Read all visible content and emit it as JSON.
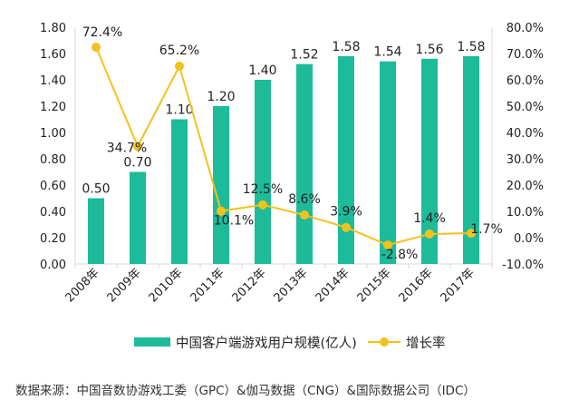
{
  "chart_data": {
    "type": "bar",
    "categories": [
      "2008年",
      "2009年",
      "2010年",
      "2011年",
      "2012年",
      "2013年",
      "2014年",
      "2015年",
      "2016年",
      "2017年"
    ],
    "series": [
      {
        "name": "中国客户端游戏用户规模(亿人)",
        "type": "bar",
        "axis": "left",
        "values": [
          0.5,
          0.7,
          1.1,
          1.2,
          1.4,
          1.52,
          1.58,
          1.54,
          1.56,
          1.58
        ],
        "labels": [
          "0.50",
          "0.70",
          "1.10",
          "1.20",
          "1.40",
          "1.52",
          "1.58",
          "1.54",
          "1.56",
          "1.58"
        ]
      },
      {
        "name": "增长率",
        "type": "line",
        "axis": "right",
        "values": [
          72.4,
          34.7,
          65.2,
          10.1,
          12.5,
          8.6,
          3.9,
          -2.8,
          1.4,
          1.7
        ],
        "labels": [
          "72.4%",
          "34.7%",
          "65.2%",
          "10.1%",
          "12.5%",
          "8.6%",
          "3.9%",
          "-2.8%",
          "1.4%",
          "1.7%"
        ]
      }
    ],
    "y_left": {
      "min": 0,
      "max": 1.8,
      "ticks": [
        "0.00",
        "0.20",
        "0.40",
        "0.60",
        "0.80",
        "1.00",
        "1.20",
        "1.40",
        "1.60",
        "1.80"
      ]
    },
    "y_right": {
      "min": -10,
      "max": 80,
      "ticks": [
        "-10.0%",
        "0.0%",
        "10.0%",
        "20.0%",
        "30.0%",
        "40.0%",
        "50.0%",
        "60.0%",
        "70.0%",
        "80.0%"
      ]
    },
    "grid": false,
    "legend_position": "bottom",
    "colors": {
      "bar": "#1dbb99",
      "line": "#f3c21d",
      "axis": "#d9d9d9",
      "text": "#222222"
    }
  },
  "source_text": "数据来源：中国音数协游戏工委（GPC）&伽马数据（CNG）&国际数据公司（IDC）"
}
